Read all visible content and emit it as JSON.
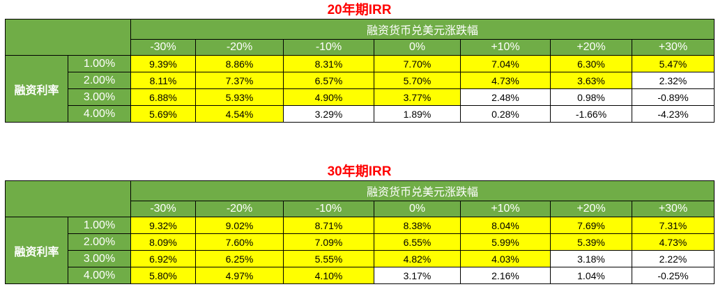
{
  "colors": {
    "header_green": "#70ad47",
    "highlight_yellow": "#ffff00",
    "title_red": "#ff0000"
  },
  "tables": [
    {
      "title": "20年期IRR",
      "group_header": "融资货币兑美元涨跌幅",
      "row_group_label": "融资利率",
      "columns": [
        "-30%",
        "-20%",
        "-10%",
        "0%",
        "+10%",
        "+20%",
        "+30%"
      ],
      "rows": [
        {
          "rate": "1.00%",
          "values": [
            "9.39%",
            "8.86%",
            "8.31%",
            "7.70%",
            "7.04%",
            "6.30%",
            "5.47%"
          ],
          "highlight": [
            true,
            true,
            true,
            true,
            true,
            true,
            true
          ]
        },
        {
          "rate": "2.00%",
          "values": [
            "8.11%",
            "7.37%",
            "6.57%",
            "5.70%",
            "4.73%",
            "3.63%",
            "2.32%"
          ],
          "highlight": [
            true,
            true,
            true,
            true,
            true,
            true,
            false
          ]
        },
        {
          "rate": "3.00%",
          "values": [
            "6.88%",
            "5.93%",
            "4.90%",
            "3.77%",
            "2.48%",
            "0.98%",
            "-0.89%"
          ],
          "highlight": [
            true,
            true,
            true,
            true,
            false,
            false,
            false
          ]
        },
        {
          "rate": "4.00%",
          "values": [
            "5.69%",
            "4.54%",
            "3.29%",
            "1.89%",
            "0.28%",
            "-1.66%",
            "-4.23%"
          ],
          "highlight": [
            true,
            true,
            false,
            false,
            false,
            false,
            false
          ]
        }
      ]
    },
    {
      "title": "30年期IRR",
      "group_header": "融资货币兑美元涨跌幅",
      "row_group_label": "融资利率",
      "columns": [
        "-30%",
        "-20%",
        "-10%",
        "0%",
        "+10%",
        "+20%",
        "+30%"
      ],
      "rows": [
        {
          "rate": "1.00%",
          "values": [
            "9.32%",
            "9.02%",
            "8.71%",
            "8.38%",
            "8.04%",
            "7.69%",
            "7.31%"
          ],
          "highlight": [
            true,
            true,
            true,
            true,
            true,
            true,
            true
          ]
        },
        {
          "rate": "2.00%",
          "values": [
            "8.09%",
            "7.60%",
            "7.09%",
            "6.55%",
            "5.99%",
            "5.39%",
            "4.73%"
          ],
          "highlight": [
            true,
            true,
            true,
            true,
            true,
            true,
            true
          ]
        },
        {
          "rate": "3.00%",
          "values": [
            "6.92%",
            "6.25%",
            "5.55%",
            "4.82%",
            "4.03%",
            "3.18%",
            "2.22%"
          ],
          "highlight": [
            true,
            true,
            true,
            true,
            true,
            false,
            false
          ]
        },
        {
          "rate": "4.00%",
          "values": [
            "5.80%",
            "4.97%",
            "4.10%",
            "3.17%",
            "2.16%",
            "1.04%",
            "-0.25%"
          ],
          "highlight": [
            true,
            true,
            true,
            false,
            false,
            false,
            false
          ]
        }
      ]
    }
  ]
}
